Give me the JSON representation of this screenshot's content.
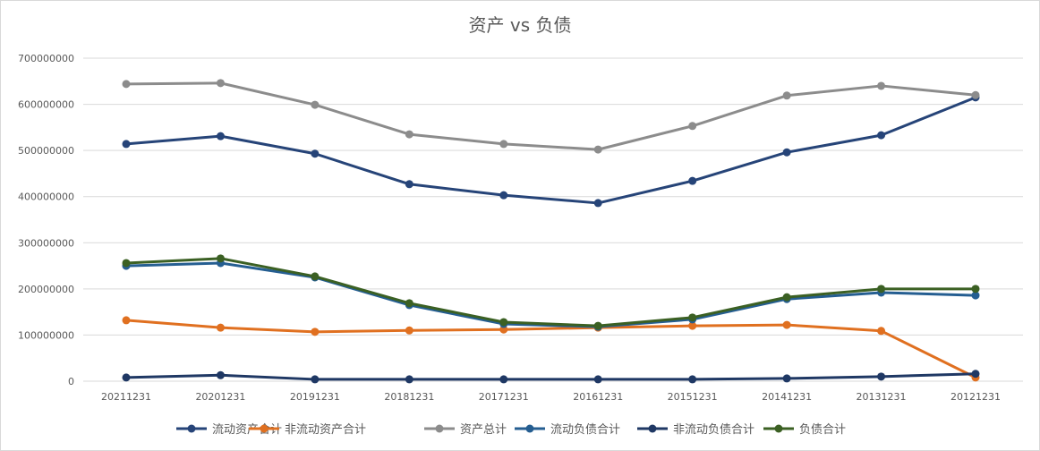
{
  "chart_data": {
    "type": "line",
    "title": "资产 vs 负债",
    "xlabel": "",
    "ylabel": "",
    "ylim": [
      0,
      700000000
    ],
    "yticks": [
      0,
      100000000,
      200000000,
      300000000,
      400000000,
      500000000,
      600000000,
      700000000
    ],
    "grid": true,
    "legend_position": "bottom",
    "categories": [
      "20211231",
      "20201231",
      "20191231",
      "20181231",
      "20171231",
      "20161231",
      "20151231",
      "20141231",
      "20131231",
      "20121231"
    ],
    "series": [
      {
        "name": "流动资产合计",
        "color": "#264478",
        "values": [
          514000000,
          531000000,
          493000000,
          427000000,
          403000000,
          386000000,
          434000000,
          496000000,
          533000000,
          615000000
        ]
      },
      {
        "name": "非流动资产合计",
        "color": "#e07020",
        "values": [
          132000000,
          116000000,
          107000000,
          110000000,
          112000000,
          116000000,
          120000000,
          122000000,
          109000000,
          8000000
        ]
      },
      {
        "name": "资产总计",
        "color": "#8c8c8c",
        "values": [
          644000000,
          646000000,
          599000000,
          535000000,
          514000000,
          502000000,
          553000000,
          619000000,
          640000000,
          620000000
        ]
      },
      {
        "name": "流动负债合计",
        "color": "#255e91",
        "values": [
          250000000,
          256000000,
          225000000,
          165000000,
          124000000,
          118000000,
          134000000,
          178000000,
          192000000,
          186000000
        ]
      },
      {
        "name": "非流动负债合计",
        "color": "#1f3864",
        "values": [
          8000000,
          13000000,
          4000000,
          4000000,
          4000000,
          4000000,
          4000000,
          6000000,
          10000000,
          16000000
        ]
      },
      {
        "name": "负债合计",
        "color": "#3b6023",
        "values": [
          256000000,
          266000000,
          227000000,
          169000000,
          128000000,
          120000000,
          138000000,
          182000000,
          200000000,
          200000000
        ]
      }
    ]
  }
}
